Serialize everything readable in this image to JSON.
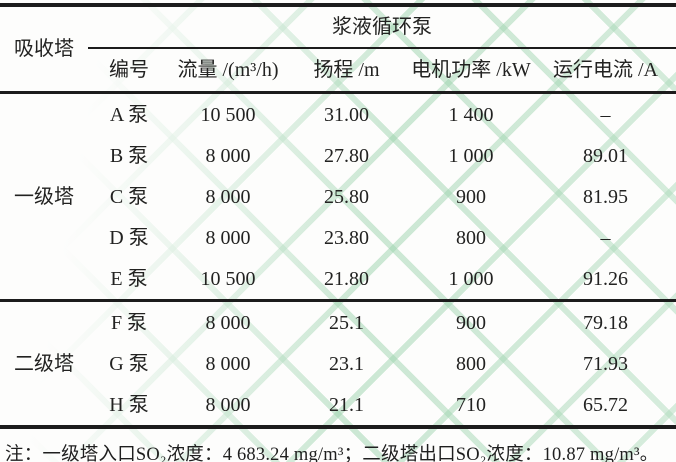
{
  "table": {
    "header": {
      "absorber_label": "吸收塔",
      "group_label": "浆液循环泵",
      "columns": [
        "编号",
        "流量 /(m³/h)",
        "扬程 /m",
        "电机功率 /kW",
        "运行电流 /A"
      ]
    },
    "sections": [
      {
        "tower": "一级塔",
        "rows": [
          {
            "pump": "A 泵",
            "flow": "10 500",
            "head": "31.00",
            "power": "1 400",
            "current": "–"
          },
          {
            "pump": "B 泵",
            "flow": "8 000",
            "head": "27.80",
            "power": "1 000",
            "current": "89.01"
          },
          {
            "pump": "C 泵",
            "flow": "8 000",
            "head": "25.80",
            "power": "900",
            "current": "81.95"
          },
          {
            "pump": "D 泵",
            "flow": "8 000",
            "head": "23.80",
            "power": "800",
            "current": "–"
          },
          {
            "pump": "E 泵",
            "flow": "10 500",
            "head": "21.80",
            "power": "1 000",
            "current": "91.26"
          }
        ]
      },
      {
        "tower": "二级塔",
        "rows": [
          {
            "pump": "F 泵",
            "flow": "8 000",
            "head": "25.1",
            "power": "900",
            "current": "79.18"
          },
          {
            "pump": "G 泵",
            "flow": "8 000",
            "head": "23.1",
            "power": "800",
            "current": "71.93"
          },
          {
            "pump": "H 泵",
            "flow": "8 000",
            "head": "21.1",
            "power": "710",
            "current": "65.72"
          }
        ]
      }
    ],
    "note": "注：一级塔入口SO₂浓度：4 683.24 mg/m³；二级塔出口SO₂浓度：10.87 mg/m³。"
  },
  "colors": {
    "text": "#222221",
    "background": "#fdfdfc",
    "rule": "#1c1c1c",
    "watermark_green": "#96d0a8"
  }
}
